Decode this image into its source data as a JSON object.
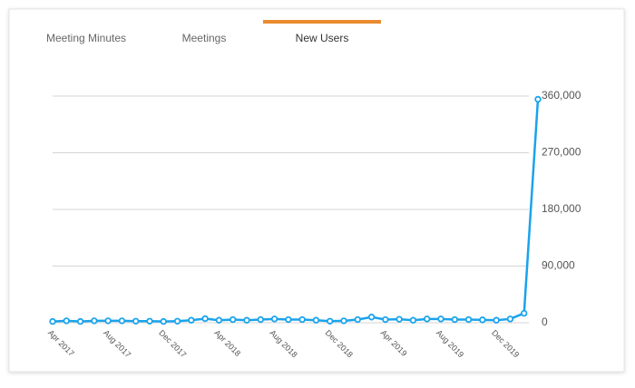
{
  "tabs": [
    "Meeting Minutes",
    "Meetings",
    "New Users"
  ],
  "active_tab": 2,
  "chart_data": {
    "type": "line",
    "categories": [
      "Apr 2017",
      null,
      null,
      null,
      "Aug 2017",
      null,
      null,
      null,
      "Dec 2017",
      null,
      null,
      null,
      "Apr 2018",
      null,
      null,
      null,
      "Aug 2018",
      null,
      null,
      null,
      "Dec 2018",
      null,
      null,
      null,
      "Apr 2019",
      null,
      null,
      null,
      "Aug 2019",
      null,
      null,
      null,
      "Dec 2019",
      null,
      null,
      null
    ],
    "series": [
      {
        "name": "New Users",
        "color": "#1aa3ec",
        "values": [
          2000,
          3000,
          2000,
          3000,
          3000,
          3000,
          2500,
          2500,
          2000,
          2500,
          4000,
          6500,
          4000,
          5000,
          4000,
          5000,
          6000,
          5000,
          5000,
          4000,
          2500,
          3000,
          5000,
          9000,
          5000,
          5500,
          4000,
          6000,
          6000,
          5000,
          5000,
          4500,
          4000,
          6000,
          15000,
          355000
        ]
      }
    ],
    "ylim": [
      0,
      360000
    ],
    "yticks": [
      0,
      {
        "value": 90000,
        "label": "90,000"
      },
      {
        "value": 180000,
        "label": "180,000"
      },
      {
        "value": 270000,
        "label": "270,000"
      },
      {
        "value": 360000,
        "label": "360,000"
      }
    ],
    "grid": true
  }
}
